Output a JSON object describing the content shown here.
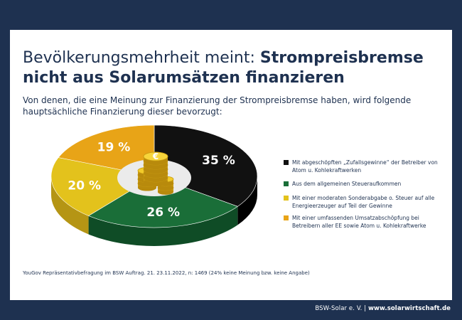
{
  "header": {
    "title_light": "Bevölkerungsmehrheit meint: ",
    "title_bold_1": "Strompreisbremse",
    "title_bold_2": "nicht aus Solarumsätzen finanzieren",
    "subtitle": "Von denen, die eine Meinung zur Finanzierung der Strompreisbremse haben, wird folgende hauptsächliche Finanzierung dieser bevorzugt:"
  },
  "chart_data": {
    "type": "pie",
    "title": "Bevölkerungsmehrheit meint: Strompreisbremse nicht aus Solarumsätzen finanzieren",
    "categories": [
      "Mit abgeschöpften „Zufallsgewinne“ der Betreiber von Atom u. Kohlekraftwerken",
      "Aus dem allgemeinen Steueraufkommen",
      "Mit einer moderaten Sonderabgabe o. Steuer auf alle Energieerzeuger auf Teil der Gewinne",
      "Mit einer umfassenden Umsatzabschöpfung bei Betreibern aller EE sowie Atom u. Kohlekraftwerke"
    ],
    "values": [
      35,
      26,
      20,
      19
    ],
    "labels": [
      "35 %",
      "26 %",
      "20 %",
      "19 %"
    ],
    "colors": [
      "#111111",
      "#1a6e38",
      "#e3c21c",
      "#e8a417"
    ],
    "side_colors": [
      "#000000",
      "#0f4c26",
      "#b59514",
      "#b57f0e"
    ],
    "label_colors": [
      "#ffffff",
      "#ffffff",
      "#ffffff",
      "#ffffff"
    ],
    "legend_position": "right"
  },
  "legend": [
    {
      "text": "Mit abgeschöpften „Zufallsgewinne“ der Betreiber von Atom u. Kohlekraftwerken",
      "color": "#111111"
    },
    {
      "text": "Aus dem allgemeinen Steueraufkommen",
      "color": "#1a6e38"
    },
    {
      "text": "Mit einer moderaten Sonderabgabe o. Steuer auf alle Energieerzeuger auf Teil der Gewinne",
      "color": "#e3c21c"
    },
    {
      "text": "Mit einer umfassenden Umsatzabschöpfung bei Betreibern aller EE sowie Atom u. Kohlekraftwerke",
      "color": "#e8a417"
    }
  ],
  "source": "YouGov Repräsentativbefragung im BSW Auftrag. 21. 23.11.2022, n: 1469 (24% keine Meinung bzw. keine Angabe)",
  "footer": {
    "org": "BSW-Solar e. V. ",
    "separator": "| ",
    "url": "www.solarwirtschaft.de"
  },
  "icons": {
    "coins": "euro-coin-stack-icon"
  }
}
